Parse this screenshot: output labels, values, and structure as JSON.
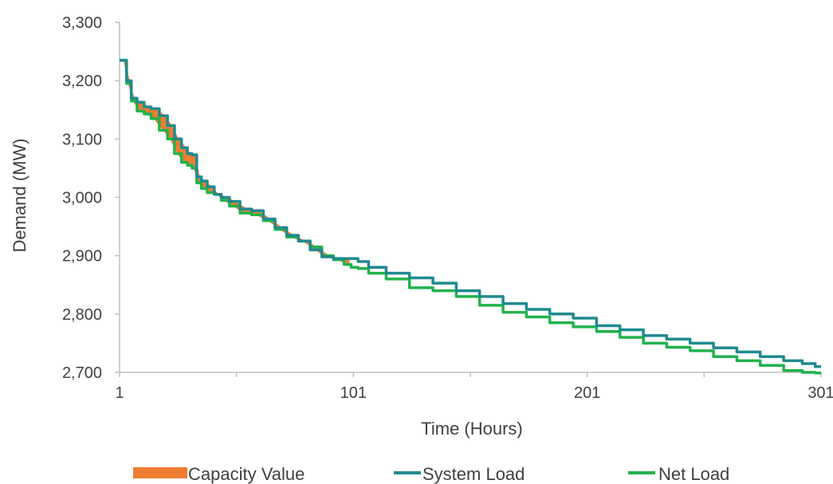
{
  "chart_data": {
    "type": "line",
    "title": "",
    "xlabel": "Time (Hours)",
    "ylabel": "Demand (MW)",
    "xlim": [
      1,
      301
    ],
    "ylim": [
      2700,
      3300
    ],
    "x_ticks": [
      1,
      101,
      201,
      301
    ],
    "x_tick_labels": [
      "1",
      "101",
      "201",
      "301"
    ],
    "y_ticks": [
      2700,
      2800,
      2900,
      3000,
      3100,
      3200,
      3300
    ],
    "y_tick_labels": [
      "2,700",
      "2,800",
      "2,900",
      "3,000",
      "3,100",
      "3,200",
      "3,300"
    ],
    "grid": false,
    "legend_position": "bottom",
    "legend": [
      "Capacity Value",
      "System Load",
      "Net Load"
    ],
    "colors": {
      "capacity_value": "#ED7D31",
      "system_load": "#1F8A8F",
      "net_load": "#22B24C",
      "axis": "#BFBFBF",
      "text": "#404040"
    },
    "series": [
      {
        "name": "System Load",
        "x": [
          1,
          3,
          5,
          7,
          10,
          13,
          16,
          20,
          23,
          26,
          29,
          31,
          33,
          35,
          37,
          40,
          43,
          46,
          50,
          55,
          60,
          65,
          70,
          75,
          80,
          85,
          90,
          95,
          99,
          101,
          105,
          110,
          120,
          130,
          140,
          150,
          160,
          170,
          180,
          190,
          200,
          210,
          220,
          230,
          240,
          250,
          260,
          270,
          280,
          290,
          296,
          301
        ],
        "y": [
          3235,
          3235,
          3200,
          3170,
          3163,
          3155,
          3152,
          3140,
          3123,
          3100,
          3085,
          3075,
          3073,
          3035,
          3028,
          3018,
          3005,
          3000,
          2993,
          2980,
          2977,
          2963,
          2948,
          2935,
          2925,
          2910,
          2898,
          2895,
          2895,
          2895,
          2890,
          2880,
          2870,
          2862,
          2853,
          2840,
          2830,
          2818,
          2808,
          2800,
          2793,
          2780,
          2773,
          2763,
          2757,
          2750,
          2742,
          2735,
          2727,
          2720,
          2715,
          2710
        ]
      },
      {
        "name": "Net Load",
        "x": [
          1,
          3,
          5,
          7,
          10,
          13,
          16,
          20,
          23,
          26,
          29,
          31,
          33,
          35,
          37,
          40,
          43,
          46,
          50,
          55,
          60,
          65,
          70,
          75,
          80,
          85,
          90,
          95,
          99,
          101,
          105,
          110,
          120,
          130,
          140,
          150,
          160,
          170,
          180,
          190,
          200,
          210,
          220,
          230,
          240,
          250,
          260,
          270,
          280,
          290,
          296,
          301
        ],
        "y": [
          3235,
          3235,
          3195,
          3165,
          3148,
          3143,
          3135,
          3115,
          3100,
          3075,
          3060,
          3055,
          3050,
          3025,
          3015,
          3008,
          3005,
          2995,
          2985,
          2973,
          2970,
          2960,
          2945,
          2932,
          2925,
          2915,
          2900,
          2893,
          2885,
          2880,
          2878,
          2870,
          2860,
          2845,
          2840,
          2830,
          2815,
          2803,
          2795,
          2785,
          2778,
          2770,
          2760,
          2750,
          2743,
          2737,
          2727,
          2720,
          2712,
          2703,
          2700,
          2699
        ]
      }
    ],
    "capacity_value": {
      "name": "Capacity Value",
      "x_range": [
        1,
        99
      ],
      "description": "Shaded area between System Load and Net Load"
    }
  }
}
